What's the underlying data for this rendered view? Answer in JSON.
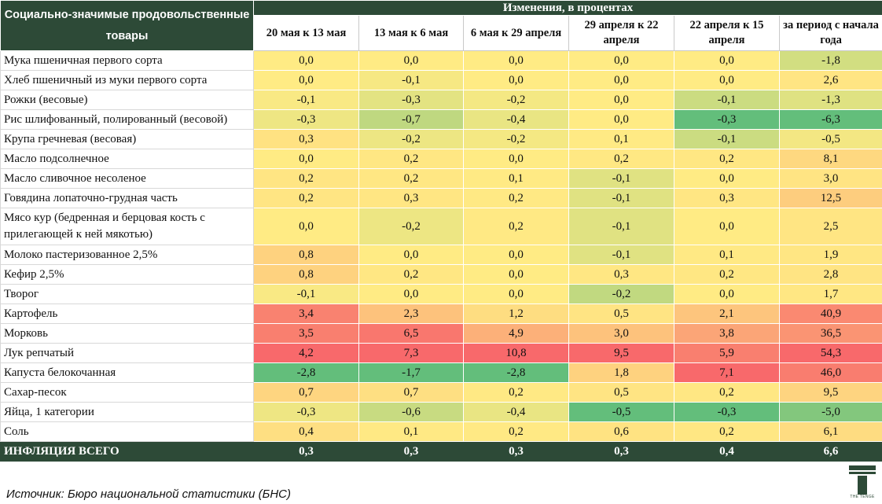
{
  "header": {
    "left_title": "Социально-значимые продовольственные товары",
    "group_title": "Изменения, в процентах",
    "columns": [
      "20 мая к 13 мая",
      "13 мая к 6 мая",
      "6 мая к 29 апреля",
      "29 апреля к 22 апреля",
      "22 апреля к 15 апреля",
      "за период с начала года"
    ]
  },
  "chart_data": {
    "type": "table",
    "columns": [
      "20 мая к 13 мая",
      "13 мая к 6 мая",
      "6 мая к 29 апреля",
      "29 апреля к 22 апреля",
      "22 апреля к 15 апреля",
      "за период с начала года"
    ],
    "rows": [
      {
        "name": "Мука пшеничная первого сорта",
        "values": [
          "0,0",
          "0,0",
          "0,0",
          "0,0",
          "0,0",
          "-1,8"
        ]
      },
      {
        "name": "Хлеб пшеничный из муки первого сорта",
        "values": [
          "0,0",
          "-0,1",
          "0,0",
          "0,0",
          "0,0",
          "2,6"
        ]
      },
      {
        "name": "Рожки (весовые)",
        "values": [
          "-0,1",
          "-0,3",
          "-0,2",
          "0,0",
          "-0,1",
          "-1,3"
        ]
      },
      {
        "name": "Рис шлифованный, полированный (весовой)",
        "values": [
          "-0,3",
          "-0,7",
          "-0,4",
          "0,0",
          "-0,3",
          "-6,3"
        ]
      },
      {
        "name": "Крупа гречневая (весовая)",
        "values": [
          "0,3",
          "-0,2",
          "-0,2",
          "0,1",
          "-0,1",
          "-0,5"
        ]
      },
      {
        "name": "Масло подсолнечное",
        "values": [
          "0,0",
          "0,2",
          "0,0",
          "0,2",
          "0,2",
          "8,1"
        ]
      },
      {
        "name": "Масло сливочное несоленое",
        "values": [
          "0,2",
          "0,2",
          "0,1",
          "-0,1",
          "0,0",
          "3,0"
        ]
      },
      {
        "name": "Говядина лопаточно-грудная часть",
        "values": [
          "0,2",
          "0,3",
          "0,2",
          "-0,1",
          "0,3",
          "12,5"
        ]
      },
      {
        "name": "Мясо кур (бедренная и берцовая кость с прилегающей к ней мякотью)",
        "values": [
          "0,0",
          "-0,2",
          "0,2",
          "-0,1",
          "0,0",
          "2,5"
        ]
      },
      {
        "name": "Молоко пастеризованное 2,5%",
        "values": [
          "0,8",
          "0,0",
          "0,0",
          "-0,1",
          "0,1",
          "1,9"
        ]
      },
      {
        "name": "Кефир 2,5%",
        "values": [
          "0,8",
          "0,2",
          "0,0",
          "0,3",
          "0,2",
          "2,8"
        ]
      },
      {
        "name": "Творог",
        "values": [
          "-0,1",
          "0,0",
          "0,0",
          "-0,2",
          "0,0",
          "1,7"
        ]
      },
      {
        "name": "Картофель",
        "values": [
          "3,4",
          "2,3",
          "1,2",
          "0,5",
          "2,1",
          "40,9"
        ]
      },
      {
        "name": "Морковь",
        "values": [
          "3,5",
          "6,5",
          "4,9",
          "3,0",
          "3,8",
          "36,5"
        ]
      },
      {
        "name": "Лук репчатый",
        "values": [
          "4,2",
          "7,3",
          "10,8",
          "9,5",
          "5,9",
          "54,3"
        ]
      },
      {
        "name": "Капуста белокочанная",
        "values": [
          "-2,8",
          "-1,7",
          "-2,8",
          "1,8",
          "7,1",
          "46,0"
        ]
      },
      {
        "name": "Сахар-песок",
        "values": [
          "0,7",
          "0,7",
          "0,2",
          "0,5",
          "0,2",
          "9,5"
        ]
      },
      {
        "name": "Яйца, 1 категории",
        "values": [
          "-0,3",
          "-0,6",
          "-0,4",
          "-0,5",
          "-0,3",
          "-5,0"
        ]
      },
      {
        "name": "Соль",
        "values": [
          "0,4",
          "0,1",
          "0,2",
          "0,6",
          "0,2",
          "6,1"
        ]
      }
    ],
    "total": {
      "name": "ИНФЛЯЦИЯ ВСЕГО",
      "values": [
        "0,3",
        "0,3",
        "0,3",
        "0,3",
        "0,4",
        "6,6"
      ]
    },
    "colors": {
      "negative": "#63be7b",
      "neutral": "#ffeb84",
      "positive": "#f8696b"
    }
  },
  "footer": {
    "source": "Источник: Бюро национальной статистики (БНС)",
    "logo_text": "THE TENGE"
  },
  "theme": {
    "header_bg": "#2d4a37"
  }
}
